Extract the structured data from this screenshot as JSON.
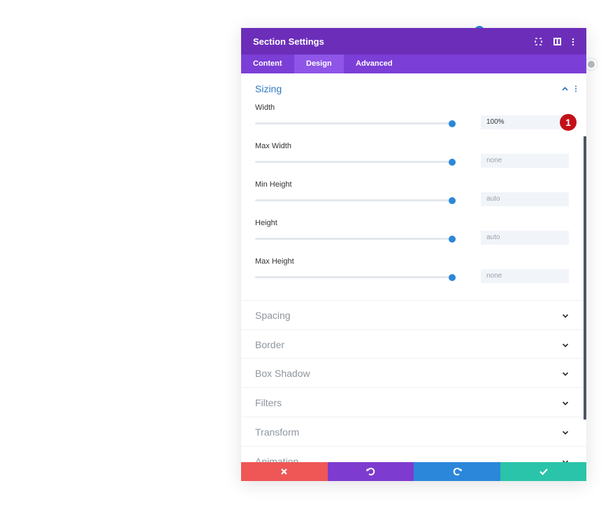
{
  "header": {
    "title": "Section Settings"
  },
  "tabs": [
    "Content",
    "Design",
    "Advanced"
  ],
  "active_tab": 1,
  "open_section": {
    "title": "Sizing",
    "fields": [
      {
        "label": "Width",
        "value": "100%"
      },
      {
        "label": "Max Width",
        "value": "none"
      },
      {
        "label": "Min Height",
        "value": "auto"
      },
      {
        "label": "Height",
        "value": "auto"
      },
      {
        "label": "Max Height",
        "value": "none"
      }
    ]
  },
  "badge": "1",
  "sections": [
    "Spacing",
    "Border",
    "Box Shadow",
    "Filters",
    "Transform",
    "Animation"
  ]
}
